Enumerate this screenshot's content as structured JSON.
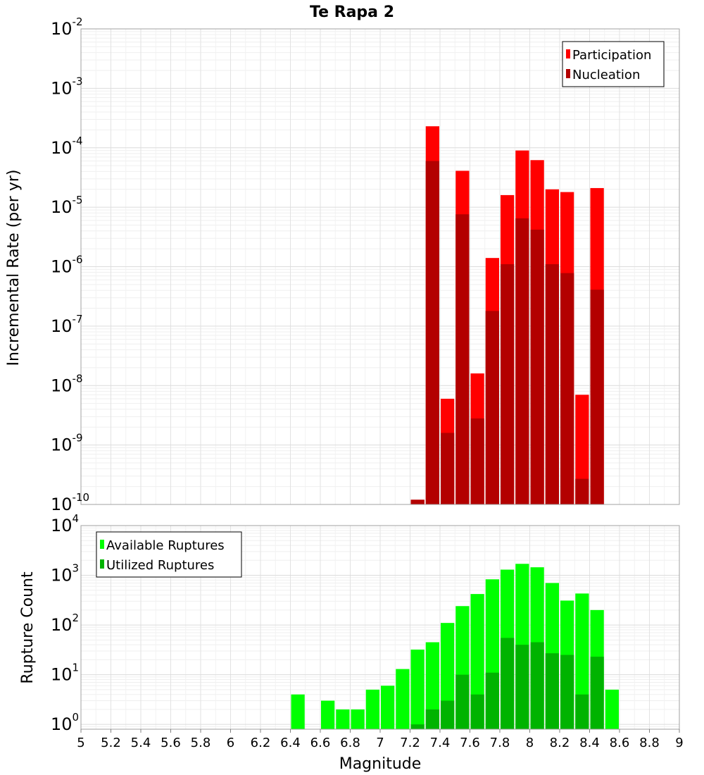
{
  "chart_data": [
    {
      "type": "bar",
      "title": "Te Rapa 2",
      "ylabel": "Incremental Rate (per yr)",
      "xlabel": "",
      "y_scale": "log",
      "ylim": [
        1e-10,
        0.01
      ],
      "xlim": [
        5,
        9
      ],
      "y_tick_exponents": [
        -10,
        -9,
        -8,
        -7,
        -6,
        -5,
        -4,
        -3,
        -2
      ],
      "grid": true,
      "legend_position": "top-right",
      "bin_width": 0.1,
      "series": [
        {
          "name": "Participation",
          "color": "#ff0000",
          "x": [
            7.25,
            7.35,
            7.45,
            7.55,
            7.65,
            7.75,
            7.85,
            7.95,
            8.05,
            8.15,
            8.25,
            8.35,
            8.45
          ],
          "values": [
            1.2e-10,
            0.00023,
            6e-09,
            4.1e-05,
            1.6e-08,
            1.4e-06,
            1.6e-05,
            9e-05,
            6.2e-05,
            2e-05,
            1.8e-05,
            7e-09,
            2.1e-05
          ]
        },
        {
          "name": "Nucleation",
          "color": "#b30000",
          "x": [
            7.25,
            7.35,
            7.45,
            7.55,
            7.65,
            7.75,
            7.85,
            7.95,
            8.05,
            8.15,
            8.25,
            8.35,
            8.45
          ],
          "values": [
            1.2e-10,
            6e-05,
            1.6e-09,
            7.6e-06,
            2.8e-09,
            1.8e-07,
            1.1e-06,
            6.5e-06,
            4.2e-06,
            1.1e-06,
            7.8e-07,
            2.7e-10,
            4.1e-07
          ]
        }
      ]
    },
    {
      "type": "bar",
      "title": "",
      "ylabel": "Rupture Count",
      "xlabel": "Magnitude",
      "y_scale": "log",
      "ylim": [
        0.8,
        10000
      ],
      "y_tick_exponents": [
        0,
        1,
        2,
        3,
        4
      ],
      "xlim": [
        5,
        9
      ],
      "x_ticks": [
        "5",
        "5.2",
        "5.4",
        "5.6",
        "5.8",
        "6",
        "6.2",
        "6.4",
        "6.6",
        "6.8",
        "7",
        "7.2",
        "7.4",
        "7.6",
        "7.8",
        "8",
        "8.2",
        "8.4",
        "8.6",
        "8.8",
        "9"
      ],
      "grid": true,
      "legend_position": "top-left",
      "bin_width": 0.1,
      "series": [
        {
          "name": "Available Ruptures",
          "color": "#00ff00",
          "x": [
            6.45,
            6.65,
            6.75,
            6.85,
            6.95,
            7.05,
            7.15,
            7.25,
            7.35,
            7.45,
            7.55,
            7.65,
            7.75,
            7.85,
            7.95,
            8.05,
            8.15,
            8.25,
            8.35,
            8.45,
            8.55
          ],
          "values": [
            4,
            3,
            2,
            2,
            5,
            6,
            13,
            32,
            45,
            110,
            240,
            420,
            830,
            1300,
            1700,
            1450,
            700,
            310,
            430,
            200,
            5
          ]
        },
        {
          "name": "Utilized Ruptures",
          "color": "#00b300",
          "x": [
            7.25,
            7.35,
            7.45,
            7.55,
            7.65,
            7.75,
            7.85,
            7.95,
            8.05,
            8.15,
            8.25,
            8.35,
            8.45
          ],
          "values": [
            1,
            2,
            3,
            10,
            4,
            11,
            55,
            40,
            45,
            27,
            25,
            4,
            23
          ]
        }
      ]
    }
  ]
}
